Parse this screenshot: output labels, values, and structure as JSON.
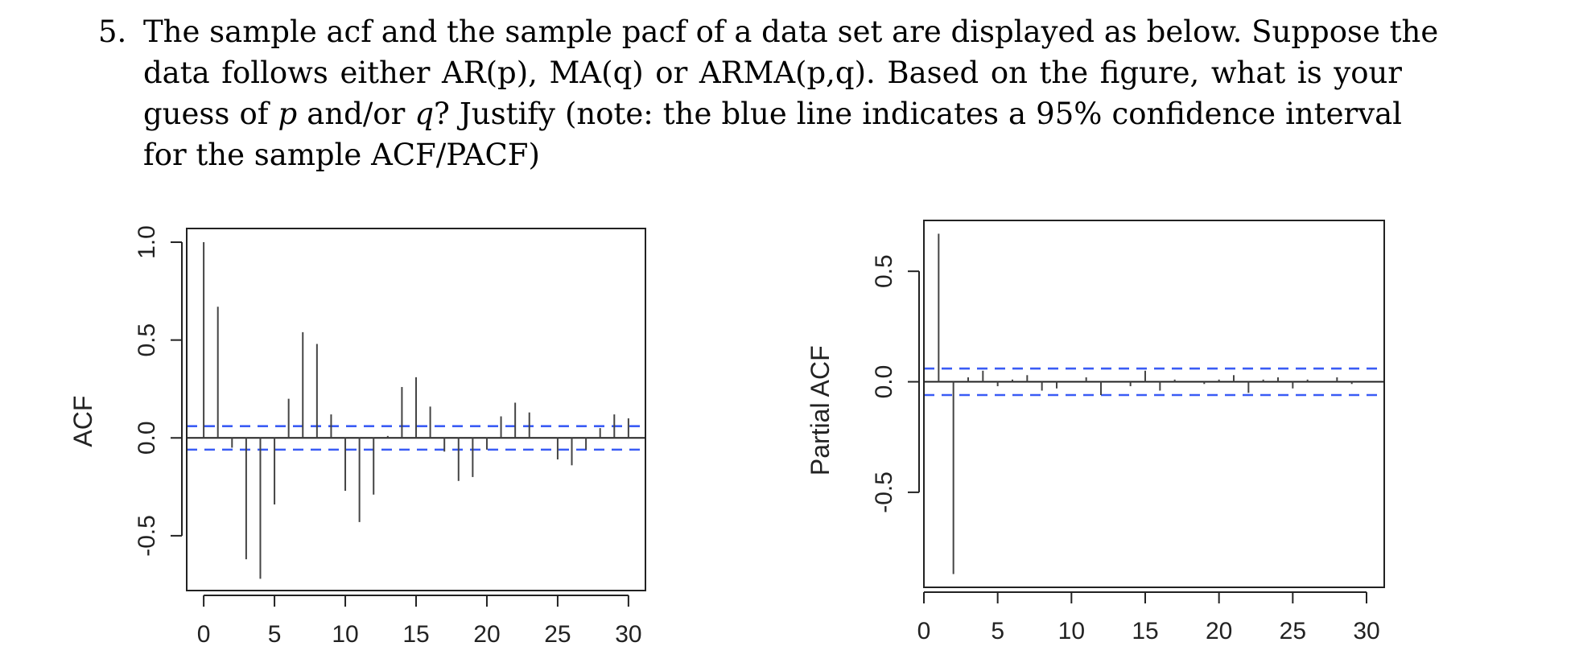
{
  "question": {
    "number": "5.",
    "lines": [
      "The sample acf and the sample pacf of a data set are displayed as below. Suppose the",
      "data follows either AR(p), MA(q) or ARMA(p,q). Based on the figure, what is your",
      [
        "guess of ",
        "p",
        " and/or ",
        "q",
        "? Justify (note: the blue line indicates a 95% confidence interval"
      ],
      "for the sample ACF/PACF)"
    ]
  },
  "chart_data": [
    {
      "type": "bar",
      "subtype": "correlogram",
      "title": "",
      "xlabel": "",
      "ylabel": "ACF",
      "xticks": [
        "0",
        "5",
        "10",
        "15",
        "20",
        "25",
        "30"
      ],
      "yticks": [
        "-0.5",
        "0.0",
        "0.5",
        "1.0"
      ],
      "xlim": [
        -1.2,
        31.2
      ],
      "ylim": [
        -0.78,
        1.07
      ],
      "confidence_band": 0.06,
      "band_color": "#3a5cf5",
      "bar_color": "#444444",
      "lags": [
        0,
        1,
        2,
        3,
        4,
        5,
        6,
        7,
        8,
        9,
        10,
        11,
        12,
        13,
        14,
        15,
        16,
        17,
        18,
        19,
        20,
        21,
        22,
        23,
        24,
        25,
        26,
        27,
        28,
        29,
        30
      ],
      "values": [
        1.0,
        0.67,
        -0.05,
        -0.62,
        -0.72,
        -0.34,
        0.2,
        0.54,
        0.48,
        0.12,
        -0.27,
        -0.43,
        -0.29,
        0.01,
        0.26,
        0.31,
        0.16,
        -0.07,
        -0.22,
        -0.2,
        -0.06,
        0.11,
        0.18,
        0.13,
        0.0,
        -0.11,
        -0.14,
        -0.06,
        0.05,
        0.12,
        0.1
      ]
    },
    {
      "type": "bar",
      "subtype": "correlogram",
      "title": "",
      "xlabel": "",
      "ylabel": "Partial ACF",
      "xticks": [
        "0",
        "5",
        "10",
        "15",
        "20",
        "25",
        "30"
      ],
      "yticks": [
        "-0.5",
        "0.0",
        "0.5"
      ],
      "xlim": [
        0,
        31.2
      ],
      "ylim": [
        -0.93,
        0.73
      ],
      "confidence_band": 0.06,
      "band_color": "#3a5cf5",
      "bar_color": "#444444",
      "lags": [
        1,
        2,
        3,
        4,
        5,
        6,
        7,
        8,
        9,
        10,
        11,
        12,
        13,
        14,
        15,
        16,
        17,
        18,
        19,
        20,
        21,
        22,
        23,
        24,
        25,
        26,
        27,
        28,
        29,
        30
      ],
      "values": [
        0.67,
        -0.87,
        0.02,
        0.05,
        -0.02,
        0.01,
        0.03,
        -0.04,
        -0.03,
        0.0,
        0.02,
        -0.06,
        0.0,
        -0.02,
        0.05,
        -0.04,
        0.01,
        0.0,
        -0.01,
        0.01,
        0.03,
        -0.05,
        0.01,
        0.02,
        -0.03,
        0.01,
        0.0,
        0.02,
        -0.01,
        0.0
      ]
    }
  ]
}
